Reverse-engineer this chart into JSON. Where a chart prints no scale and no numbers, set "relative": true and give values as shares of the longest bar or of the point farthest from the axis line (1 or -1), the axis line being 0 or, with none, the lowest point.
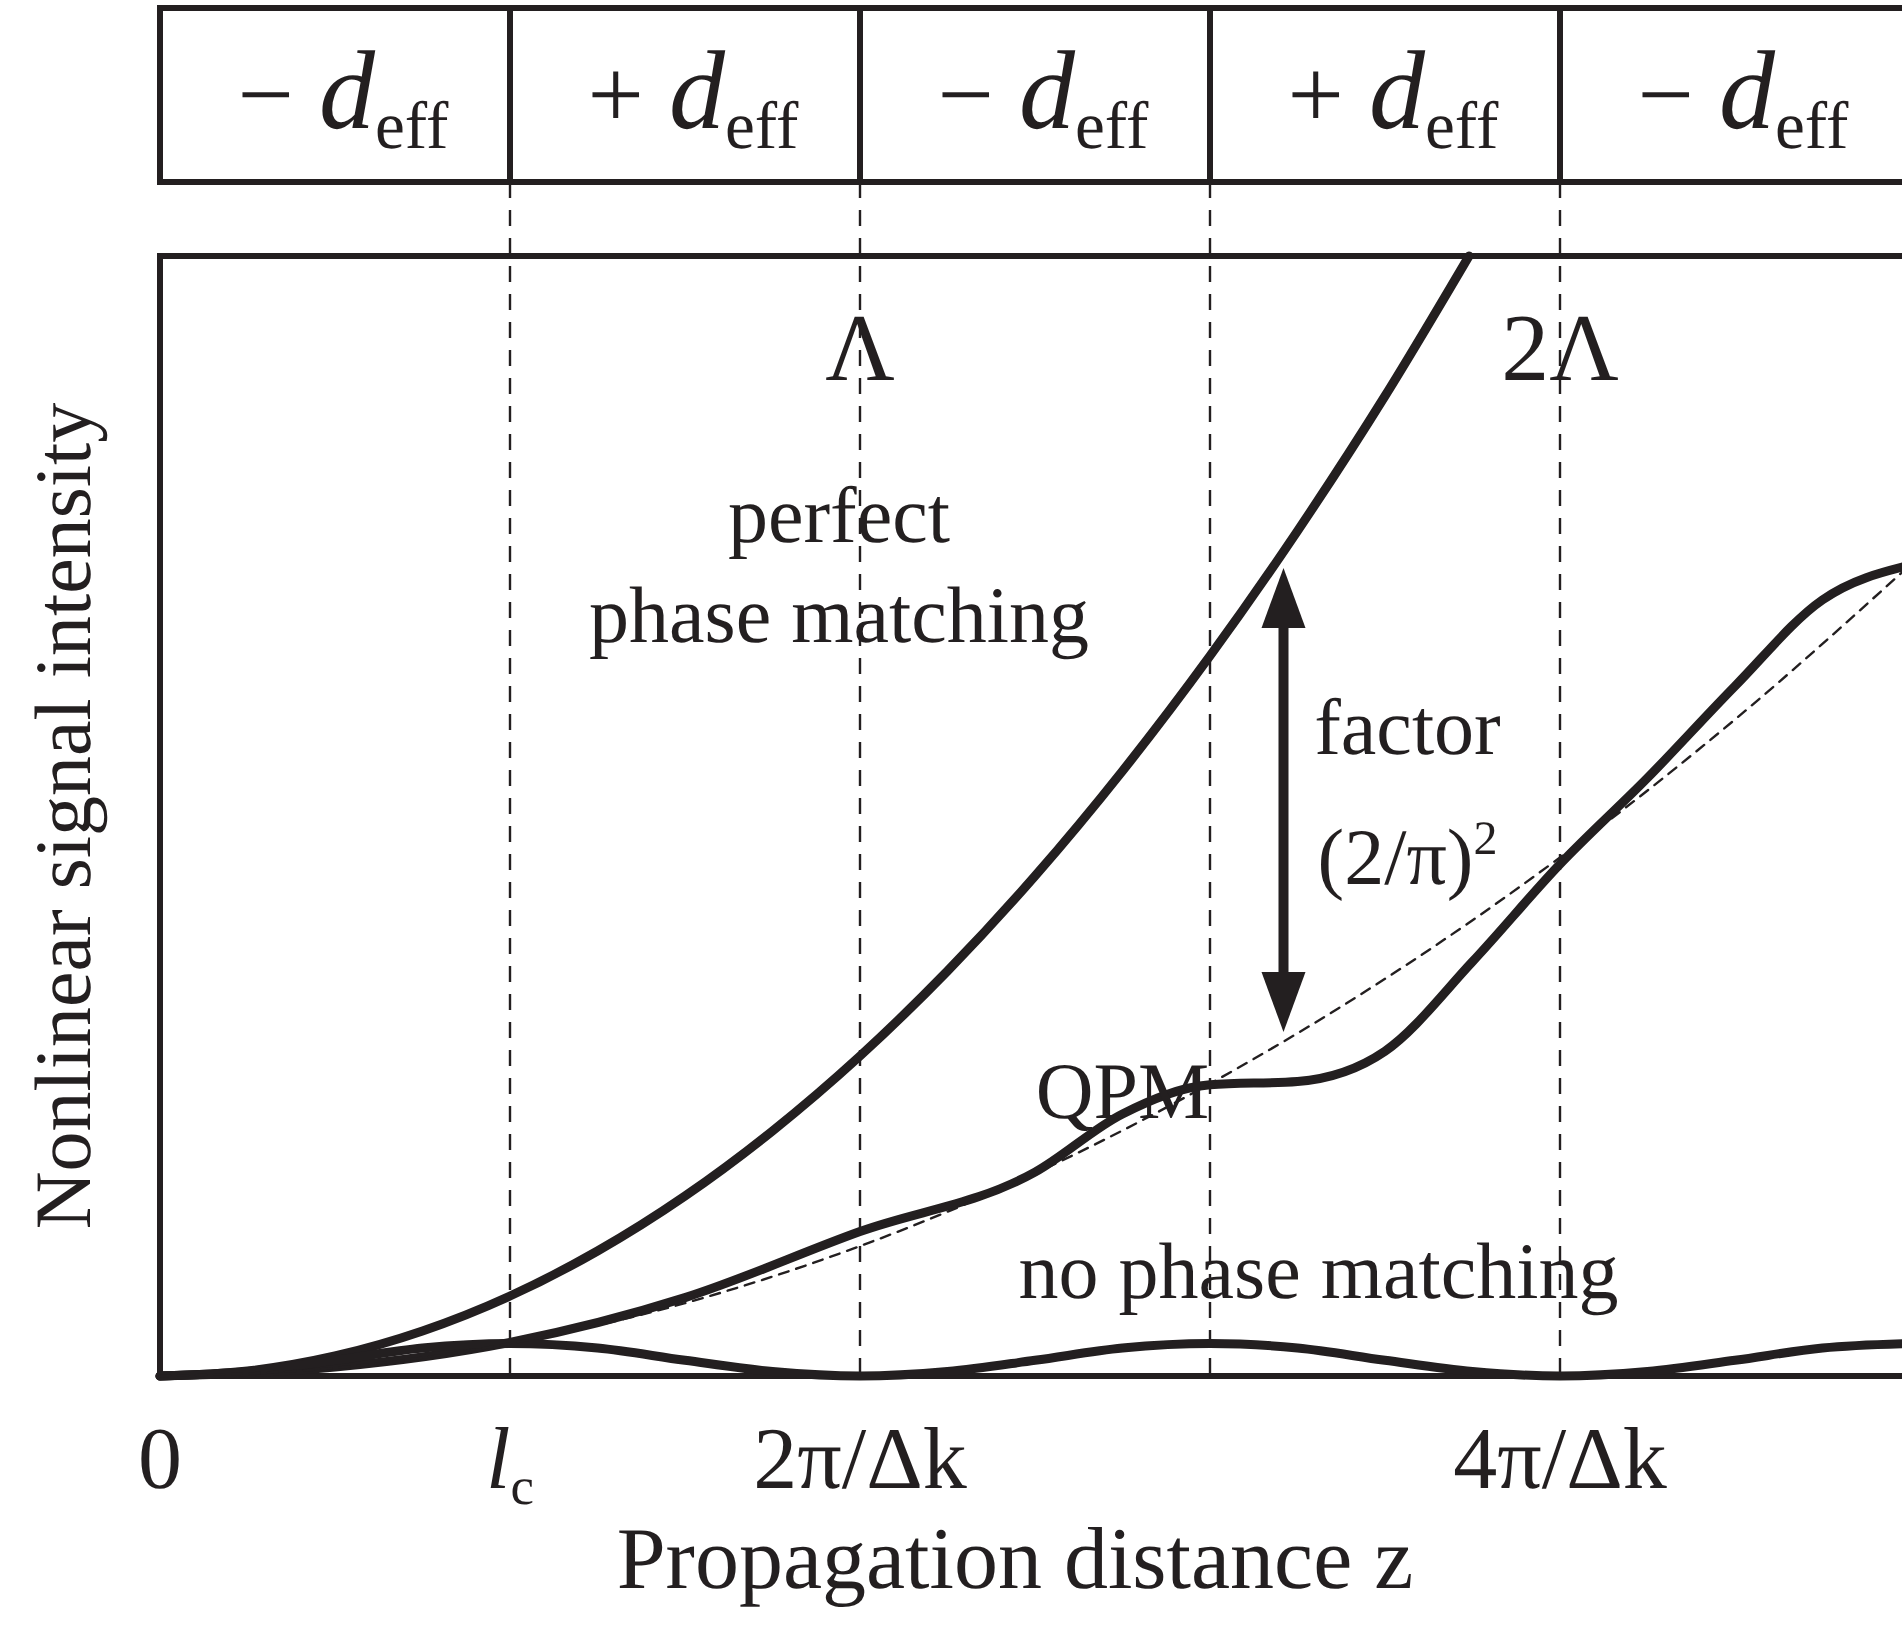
{
  "chart_data": {
    "type": "line",
    "relative": true,
    "xlabel": "Propagation distance z",
    "ylabel": "Nonlinear signal intensity",
    "xlim": [
      0,
      5
    ],
    "xticks": [
      0,
      {
        "value": 1,
        "label": "l$_{c}$"
      },
      {
        "value": 2,
        "label": "2π/Δk"
      },
      {
        "value": 3,
        "label": null
      },
      {
        "value": 4,
        "label": "4π/Δk"
      }
    ],
    "grid": "x",
    "marker": "none",
    "line_style": "solid",
    "series": [
      {
        "name": "perfect phase matching",
        "color": "#231f20",
        "x": [
          0,
          0.25,
          0.5,
          0.75,
          1,
          1.25,
          1.5,
          1.75,
          2,
          2.25,
          2.5,
          2.75,
          3,
          3.25,
          3.5,
          3.74
        ],
        "values": [
          0,
          0.0045,
          0.0179,
          0.0402,
          0.0714,
          0.1116,
          0.1607,
          0.2188,
          0.2857,
          0.3616,
          0.4464,
          0.5402,
          0.6429,
          0.7545,
          0.875,
          1
        ]
      },
      {
        "name": "QPM",
        "color": "#231f20",
        "x": [
          0,
          0.5,
          1,
          1.5,
          2,
          2.5,
          2.75,
          3,
          3.25,
          3.5,
          3.75,
          4,
          4.25,
          4.5,
          4.75,
          5
        ],
        "values": [
          0,
          0.008,
          0.03,
          0.07,
          0.129,
          0.182,
          0.234,
          0.26,
          0.263,
          0.29,
          0.37,
          0.457,
          0.534,
          0.616,
          0.693,
          0.724
        ]
      },
      {
        "name": "no phase matching",
        "color": "#231f20",
        "x": [
          0,
          0.25,
          0.5,
          0.75,
          1,
          1.25,
          1.5,
          1.75,
          2,
          2.25,
          2.5,
          2.75,
          3,
          3.25,
          3.5,
          3.75,
          4,
          4.25,
          4.5,
          4.75,
          5
        ],
        "values": [
          0,
          0.004,
          0.014,
          0.025,
          0.029,
          0.025,
          0.014,
          0.004,
          0,
          0.004,
          0.014,
          0.025,
          0.029,
          0.025,
          0.014,
          0.004,
          0,
          0.004,
          0.014,
          0.025,
          0.029
        ]
      },
      {
        "color": "#231f20",
        "line_style": "dashed",
        "x": [
          0,
          0.5,
          1,
          1.5,
          2,
          2.5,
          3,
          3.5,
          4,
          4.5,
          5
        ],
        "values": [
          0,
          0.0072,
          0.029,
          0.0651,
          0.116,
          0.181,
          0.261,
          0.3546,
          0.463,
          0.5862,
          0.724
        ]
      }
    ],
    "annotations": [
      "− d$_{eff}$",
      "+ d$_{eff}$",
      "− d$_{eff}$",
      "+ d$_{eff}$",
      "− d$_{eff}$",
      "Λ",
      "2Λ",
      "factor (2/π)$^{2}$"
    ]
  }
}
